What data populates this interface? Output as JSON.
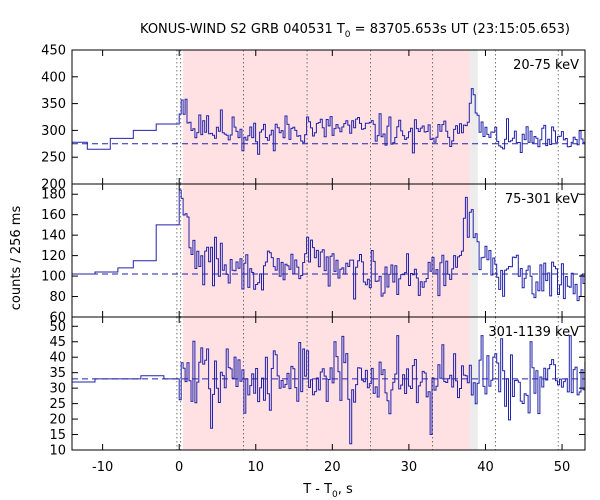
{
  "chart_data": {
    "type": "line",
    "title": "KONUS-WIND S2 GRB 040531 T",
    "title_sub": "0",
    "title_rest": " = 83705.653s UT (23:15:05.653)",
    "xlabel": "T - T",
    "xlabel_sub": "0",
    "xlabel_rest": ", s",
    "ylabel": "counts / 256 ms",
    "xlim": [
      -14,
      53
    ],
    "x_ticks": [
      -10,
      0,
      10,
      20,
      30,
      40,
      50
    ],
    "x_tick_labels": [
      "-10",
      "0",
      "10",
      "20",
      "30",
      "40",
      "50"
    ],
    "highlight": [
      0.5,
      38
    ],
    "highlight_color": "#ffe0e3",
    "secondary_highlight": [
      38,
      39
    ],
    "secondary_highlight_color": "#ececec",
    "vlines_dotted": [
      -0.3,
      0.2,
      8.4,
      16.7,
      25.0,
      33.1,
      41.3,
      49.5
    ],
    "series_color": "#2222aa",
    "panels": [
      {
        "energy_label": "20-75 keV",
        "ylim": [
          200,
          450
        ],
        "y_ticks": [
          200,
          250,
          300,
          350,
          400,
          450
        ],
        "y_tick_labels": [
          "200",
          "250",
          "300",
          "350",
          "400",
          "450"
        ],
        "background": 275,
        "pre_steps": [
          [
            -14,
            278
          ],
          [
            -12,
            265
          ],
          [
            -9,
            285
          ],
          [
            -6,
            300
          ],
          [
            -3,
            312
          ]
        ],
        "profile": [
          [
            0,
            346
          ],
          [
            0.5,
            355
          ],
          [
            1,
            325
          ],
          [
            2,
            300
          ],
          [
            4,
            302
          ],
          [
            6,
            300
          ],
          [
            9,
            292
          ],
          [
            12,
            296
          ],
          [
            16,
            302
          ],
          [
            20,
            303
          ],
          [
            24,
            304
          ],
          [
            28,
            297
          ],
          [
            32,
            292
          ],
          [
            35,
            293
          ],
          [
            37,
            315
          ],
          [
            37.8,
            340
          ],
          [
            38.3,
            378
          ],
          [
            38.8,
            320
          ],
          [
            39.5,
            300
          ],
          [
            41,
            285
          ],
          [
            44,
            280
          ],
          [
            48,
            280
          ],
          [
            53,
            280
          ]
        ],
        "noise": 14,
        "spikes": [
          [
            0.8,
            358
          ],
          [
            3.3,
            318
          ],
          [
            5.5,
            338
          ],
          [
            7.0,
            325
          ],
          [
            8.2,
            262
          ],
          [
            12.5,
            262
          ],
          [
            16.8,
            325
          ],
          [
            22.0,
            318
          ],
          [
            25.0,
            315
          ],
          [
            30.5,
            258
          ],
          [
            38.4,
            378
          ]
        ],
        "seed": 11
      },
      {
        "energy_label": "75-301 keV",
        "ylim": [
          60,
          190
        ],
        "y_ticks": [
          60,
          80,
          100,
          120,
          140,
          160,
          180
        ],
        "y_tick_labels": [
          "60",
          "80",
          "100",
          "120",
          "140",
          "160",
          "180"
        ],
        "background": 102,
        "pre_steps": [
          [
            -14,
            102
          ],
          [
            -11,
            104
          ],
          [
            -8,
            108
          ],
          [
            -6,
            115
          ],
          [
            -3,
            150
          ]
        ],
        "profile": [
          [
            0,
            180
          ],
          [
            0.5,
            168
          ],
          [
            1.2,
            145
          ],
          [
            2,
            122
          ],
          [
            3,
            112
          ],
          [
            6,
            106
          ],
          [
            10,
            104
          ],
          [
            14,
            104
          ],
          [
            16.5,
            115
          ],
          [
            17.5,
            128
          ],
          [
            19,
            110
          ],
          [
            22,
            103
          ],
          [
            25,
            106
          ],
          [
            27,
            102
          ],
          [
            30,
            101
          ],
          [
            34,
            100
          ],
          [
            36.5,
            110
          ],
          [
            37.2,
            150
          ],
          [
            38.0,
            162
          ],
          [
            38.8,
            135
          ],
          [
            40,
            110
          ],
          [
            43,
            102
          ],
          [
            48,
            98
          ],
          [
            53,
            96
          ]
        ],
        "noise": 10,
        "spikes": [
          [
            0.2,
            184
          ],
          [
            4.8,
            138
          ],
          [
            5.5,
            132
          ],
          [
            11.2,
            110
          ],
          [
            16.8,
            138
          ],
          [
            25.3,
            125
          ],
          [
            28.5,
            82
          ],
          [
            36.0,
            120
          ],
          [
            38.2,
            165
          ],
          [
            40.5,
            125
          ],
          [
            49.5,
            82
          ],
          [
            52,
            76
          ]
        ],
        "seed": 29
      },
      {
        "energy_label": "301-1139 keV",
        "ylim": [
          10,
          53
        ],
        "y_ticks": [
          10,
          15,
          20,
          25,
          30,
          35,
          40,
          45,
          50
        ],
        "y_tick_labels": [
          "10",
          "15",
          "20",
          "25",
          "30",
          "35",
          "40",
          "45",
          "50"
        ],
        "background": 33,
        "pre_steps": [
          [
            -14,
            32
          ],
          [
            -11,
            33
          ],
          [
            -8,
            33
          ],
          [
            -5,
            34
          ],
          [
            -2,
            33
          ]
        ],
        "profile": [
          [
            0,
            34
          ],
          [
            2,
            34
          ],
          [
            5,
            33
          ],
          [
            10,
            33
          ],
          [
            15,
            34
          ],
          [
            20,
            33
          ],
          [
            25,
            33
          ],
          [
            30,
            32
          ],
          [
            35,
            33
          ],
          [
            38,
            34
          ],
          [
            41,
            33
          ],
          [
            45,
            32
          ],
          [
            50,
            32
          ],
          [
            53,
            32
          ]
        ],
        "noise": 5.5,
        "spikes": [
          [
            3.0,
            43
          ],
          [
            4.2,
            17
          ],
          [
            11.5,
            40
          ],
          [
            20.3,
            45
          ],
          [
            22.5,
            12
          ],
          [
            28.5,
            47
          ],
          [
            33.0,
            15
          ],
          [
            34.5,
            44
          ],
          [
            39.5,
            47
          ],
          [
            42.0,
            46
          ],
          [
            46.0,
            45
          ],
          [
            51.0,
            47
          ]
        ],
        "seed": 47
      }
    ]
  }
}
